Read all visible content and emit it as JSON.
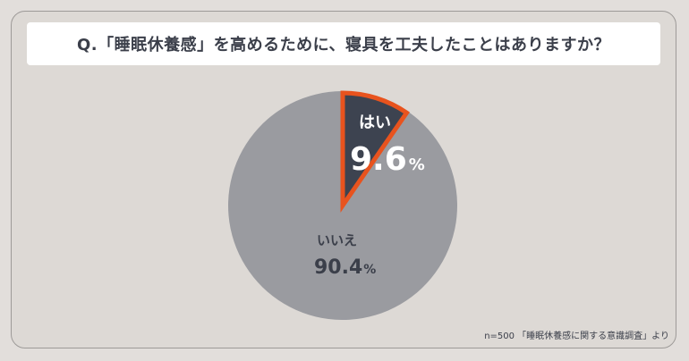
{
  "title": "Q.「睡眠休養感」を高めるために、寝具を工夫したことはありますか？",
  "source": "n=500 「睡眠休養感に関する意識調査」より",
  "colors": {
    "yes_fill": "#3d4350",
    "yes_stroke": "#e8531e",
    "no_fill": "#9a9ba0",
    "text_light": "#ffffff",
    "text_dark": "#3b3f4a"
  },
  "chart_data": {
    "type": "pie",
    "slices": [
      {
        "label": "はい",
        "value": 9.6,
        "value_label": "9.6",
        "unit": "%"
      },
      {
        "label": "いいえ",
        "value": 90.4,
        "value_label": "90.4",
        "unit": "%"
      }
    ]
  }
}
